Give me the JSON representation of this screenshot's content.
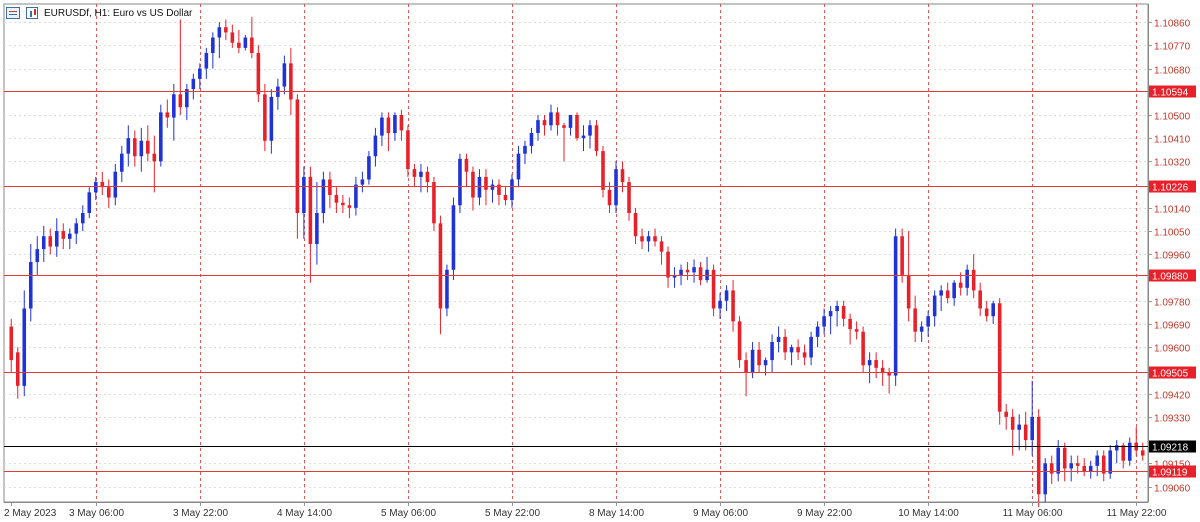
{
  "header": {
    "symbol_title": "EURUSDf, H1:  Euro vs US Dollar",
    "icons": [
      "chart-window-icon",
      "one-click-trading-icon"
    ]
  },
  "colors": {
    "bull": "#1f33d6",
    "bear": "#e8202a",
    "level_line": "#e23b3b",
    "label_bg": "#e8202a",
    "current_line": "#000000",
    "grid": "#dcdcdc",
    "axis_text": "#c0392b",
    "time_text": "#333333",
    "neutral": "#19a919"
  },
  "chart_data": {
    "type": "candlestick",
    "title": "EURUSDf, H1:  Euro vs US Dollar",
    "y_ticks": [
      "1.10860",
      "1.10770",
      "1.10680",
      "1.10500",
      "1.10410",
      "1.10320",
      "1.10140",
      "1.10050",
      "1.09960",
      "1.09780",
      "1.09690",
      "1.09600",
      "1.09420",
      "1.09330",
      "1.09150",
      "1.09060"
    ],
    "y_range": [
      1.09,
      1.1093
    ],
    "x_ticks": [
      "2 May 2023",
      "3 May 06:00",
      "3 May 22:00",
      "4 May 14:00",
      "5 May 06:00",
      "5 May 22:00",
      "8 May 14:00",
      "9 May 06:00",
      "9 May 22:00",
      "10 May 14:00",
      "11 May 06:00",
      "11 May 22:00"
    ],
    "levels": [
      {
        "price": 1.10594,
        "label": "1.10594"
      },
      {
        "price": 1.10226,
        "label": "1.10226"
      },
      {
        "price": 1.0988,
        "label": "1.09880"
      },
      {
        "price": 1.09505,
        "label": "1.09505"
      },
      {
        "price": 1.09119,
        "label": "1.09119"
      }
    ],
    "current_price": {
      "price": 1.09218,
      "label": "1.09218"
    },
    "grid": true,
    "candles": [
      [
        1.0968,
        1.0971,
        1.095,
        1.0955
      ],
      [
        1.0958,
        1.096,
        1.094,
        1.0945
      ],
      [
        1.0945,
        1.0982,
        1.0941,
        1.0975
      ],
      [
        1.0975,
        1.1,
        1.097,
        1.0993
      ],
      [
        1.0993,
        1.1003,
        1.0988,
        1.0998
      ],
      [
        1.0998,
        1.1007,
        1.0993,
        1.1003
      ],
      [
        1.1003,
        1.1006,
        1.0996,
        1.0999
      ],
      [
        1.0999,
        1.101,
        1.0995,
        1.1005
      ],
      [
        1.1005,
        1.1008,
        1.0998,
        1.1002
      ],
      [
        1.1002,
        1.1006,
        1.0998,
        1.1004
      ],
      [
        1.1004,
        1.101,
        1.1,
        1.1008
      ],
      [
        1.1008,
        1.1015,
        1.1005,
        1.1012
      ],
      [
        1.1012,
        1.1022,
        1.101,
        1.102
      ],
      [
        1.102,
        1.1026,
        1.1017,
        1.1024
      ],
      [
        1.1024,
        1.1028,
        1.1019,
        1.1022
      ],
      [
        1.1022,
        1.1025,
        1.1014,
        1.1018
      ],
      [
        1.1018,
        1.1031,
        1.1015,
        1.1028
      ],
      [
        1.1028,
        1.1038,
        1.1024,
        1.1035
      ],
      [
        1.1035,
        1.1046,
        1.103,
        1.1041
      ],
      [
        1.1041,
        1.1044,
        1.103,
        1.1034
      ],
      [
        1.1034,
        1.1045,
        1.1028,
        1.104
      ],
      [
        1.104,
        1.1046,
        1.1032,
        1.1035
      ],
      [
        1.1035,
        1.1042,
        1.102,
        1.1032
      ],
      [
        1.1032,
        1.1054,
        1.103,
        1.1051
      ],
      [
        1.1051,
        1.1056,
        1.1045,
        1.1049
      ],
      [
        1.1049,
        1.1062,
        1.104,
        1.1058
      ],
      [
        1.1058,
        1.1087,
        1.105,
        1.1053
      ],
      [
        1.1053,
        1.1062,
        1.1048,
        1.106
      ],
      [
        1.106,
        1.1066,
        1.1056,
        1.1064
      ],
      [
        1.1064,
        1.107,
        1.106,
        1.1068
      ],
      [
        1.1068,
        1.1076,
        1.1064,
        1.1074
      ],
      [
        1.1074,
        1.1082,
        1.1068,
        1.108
      ],
      [
        1.108,
        1.1086,
        1.1072,
        1.1084
      ],
      [
        1.1084,
        1.1087,
        1.1079,
        1.1082
      ],
      [
        1.1082,
        1.1085,
        1.1076,
        1.1078
      ],
      [
        1.1078,
        1.1083,
        1.1074,
        1.1076
      ],
      [
        1.1076,
        1.1081,
        1.1075,
        1.108
      ],
      [
        1.108,
        1.1088,
        1.1072,
        1.1074
      ],
      [
        1.1074,
        1.1077,
        1.1055,
        1.1058
      ],
      [
        1.1058,
        1.1062,
        1.1036,
        1.104
      ],
      [
        1.104,
        1.106,
        1.1035,
        1.1057
      ],
      [
        1.1057,
        1.1064,
        1.1052,
        1.1061
      ],
      [
        1.1061,
        1.1073,
        1.1058,
        1.107
      ],
      [
        1.107,
        1.1076,
        1.105,
        1.1056
      ],
      [
        1.1056,
        1.1058,
        1.1002,
        1.1012
      ],
      [
        1.1012,
        1.103,
        1.1002,
        1.1026
      ],
      [
        1.1026,
        1.103,
        1.0985,
        1.1
      ],
      [
        1.1,
        1.1024,
        1.0992,
        1.1012
      ],
      [
        1.1012,
        1.1028,
        1.1008,
        1.1025
      ],
      [
        1.1025,
        1.1028,
        1.1014,
        1.1019
      ],
      [
        1.1019,
        1.1022,
        1.1012,
        1.1016
      ],
      [
        1.1016,
        1.1019,
        1.1012,
        1.1015
      ],
      [
        1.1015,
        1.1018,
        1.101,
        1.1014
      ],
      [
        1.1014,
        1.1026,
        1.1011,
        1.1023
      ],
      [
        1.1023,
        1.1028,
        1.102,
        1.1025
      ],
      [
        1.1025,
        1.1036,
        1.1023,
        1.1034
      ],
      [
        1.1034,
        1.1045,
        1.103,
        1.1042
      ],
      [
        1.1042,
        1.1051,
        1.1038,
        1.1049
      ],
      [
        1.1049,
        1.1051,
        1.1036,
        1.1043
      ],
      [
        1.1043,
        1.1051,
        1.104,
        1.105
      ],
      [
        1.105,
        1.1052,
        1.104,
        1.1044
      ],
      [
        1.1044,
        1.1046,
        1.1026,
        1.1029
      ],
      [
        1.1029,
        1.1031,
        1.1022,
        1.1026
      ],
      [
        1.1026,
        1.1031,
        1.102,
        1.1028
      ],
      [
        1.1028,
        1.103,
        1.102,
        1.1024
      ],
      [
        1.1024,
        1.1026,
        1.1005,
        1.1008
      ],
      [
        1.1008,
        1.1011,
        1.0965,
        1.0975
      ],
      [
        1.0975,
        1.0992,
        1.0972,
        1.099
      ],
      [
        1.099,
        1.1018,
        1.0986,
        1.1015
      ],
      [
        1.1015,
        1.1035,
        1.1012,
        1.1033
      ],
      [
        1.1033,
        1.1035,
        1.1022,
        1.1028
      ],
      [
        1.1028,
        1.103,
        1.1013,
        1.1018
      ],
      [
        1.1018,
        1.1029,
        1.1015,
        1.1026
      ],
      [
        1.1026,
        1.1029,
        1.1015,
        1.1021
      ],
      [
        1.1021,
        1.1025,
        1.1016,
        1.1023
      ],
      [
        1.1023,
        1.1025,
        1.1015,
        1.1019
      ],
      [
        1.1019,
        1.1022,
        1.1015,
        1.1017
      ],
      [
        1.1017,
        1.1027,
        1.1014,
        1.1025
      ],
      [
        1.1025,
        1.1038,
        1.1022,
        1.1035
      ],
      [
        1.1035,
        1.104,
        1.1031,
        1.1038
      ],
      [
        1.1038,
        1.1045,
        1.1035,
        1.1043
      ],
      [
        1.1043,
        1.105,
        1.104,
        1.1048
      ],
      [
        1.1048,
        1.105,
        1.1042,
        1.1046
      ],
      [
        1.1046,
        1.1054,
        1.1044,
        1.1051
      ],
      [
        1.1051,
        1.1053,
        1.1042,
        1.1046
      ],
      [
        1.1046,
        1.1047,
        1.1032,
        1.1045
      ],
      [
        1.1045,
        1.105,
        1.1042,
        1.105
      ],
      [
        1.105,
        1.1051,
        1.104,
        1.1041
      ],
      [
        1.1041,
        1.1046,
        1.1036,
        1.1042
      ],
      [
        1.1042,
        1.1048,
        1.1037,
        1.1046
      ],
      [
        1.1046,
        1.1048,
        1.1034,
        1.1036
      ],
      [
        1.1036,
        1.1038,
        1.1018,
        1.1021
      ],
      [
        1.1021,
        1.1024,
        1.1012,
        1.1015
      ],
      [
        1.1015,
        1.1032,
        1.1012,
        1.1029
      ],
      [
        1.1029,
        1.1032,
        1.102,
        1.1024
      ],
      [
        1.1024,
        1.1026,
        1.1009,
        1.1012
      ],
      [
        1.1012,
        1.1014,
        1.1,
        1.1003
      ],
      [
        1.1003,
        1.1006,
        1.0998,
        1.1001
      ],
      [
        1.1001,
        1.1005,
        1.0997,
        1.1003
      ],
      [
        1.1003,
        1.1006,
        1.0999,
        1.1001
      ],
      [
        1.1001,
        1.1003,
        1.0992,
        1.0997
      ],
      [
        1.0997,
        1.0999,
        1.0983,
        1.0987
      ],
      [
        1.0987,
        1.0991,
        1.0983,
        1.0988
      ],
      [
        1.0988,
        1.0992,
        1.0984,
        1.099
      ],
      [
        1.099,
        1.0993,
        1.0986,
        1.0989
      ],
      [
        1.0989,
        1.0994,
        1.0985,
        1.0991
      ],
      [
        1.0991,
        1.0993,
        1.0984,
        1.0986
      ],
      [
        1.0986,
        1.0995,
        1.0985,
        1.099
      ],
      [
        1.099,
        1.0992,
        1.0972,
        1.0975
      ],
      [
        1.0975,
        1.0981,
        1.0971,
        1.0978
      ],
      [
        1.0978,
        1.0984,
        1.0974,
        1.0982
      ],
      [
        1.0982,
        1.0986,
        1.0966,
        1.097
      ],
      [
        1.097,
        1.0972,
        1.0952,
        1.0955
      ],
      [
        1.0955,
        1.0958,
        1.0941,
        1.095
      ],
      [
        1.095,
        1.0962,
        1.0948,
        1.0959
      ],
      [
        1.0959,
        1.0962,
        1.095,
        1.0953
      ],
      [
        1.0953,
        1.0956,
        1.0949,
        1.0955
      ],
      [
        1.0955,
        1.0965,
        1.095,
        1.0962
      ],
      [
        1.0962,
        1.0968,
        1.0958,
        1.0964
      ],
      [
        1.0964,
        1.0967,
        1.0955,
        1.0958
      ],
      [
        1.0958,
        1.0961,
        1.0953,
        1.096
      ],
      [
        1.096,
        1.0963,
        1.0955,
        1.0958
      ],
      [
        1.0958,
        1.0961,
        1.0953,
        1.0956
      ],
      [
        1.0956,
        1.0966,
        1.0953,
        1.0964
      ],
      [
        1.0964,
        1.097,
        1.096,
        1.0968
      ],
      [
        1.0968,
        1.0975,
        1.0965,
        1.0972
      ],
      [
        1.0972,
        1.0976,
        1.0965,
        1.0974
      ],
      [
        1.0974,
        1.0978,
        1.0968,
        1.0976
      ],
      [
        1.0976,
        1.0978,
        1.0968,
        1.0971
      ],
      [
        1.0971,
        1.0973,
        1.0961,
        1.0967
      ],
      [
        1.0967,
        1.097,
        1.0963,
        1.0966
      ],
      [
        1.0966,
        1.0968,
        1.095,
        1.0953
      ],
      [
        1.0953,
        1.0958,
        1.0946,
        1.0955
      ],
      [
        1.0955,
        1.0958,
        1.0948,
        1.0952
      ],
      [
        1.0952,
        1.0955,
        1.0945,
        1.095
      ],
      [
        1.095,
        1.0952,
        1.0942,
        1.0949
      ],
      [
        1.0949,
        1.1006,
        1.0945,
        1.1003
      ],
      [
        1.1003,
        1.1006,
        1.0985,
        1.0988
      ],
      [
        1.0988,
        1.1005,
        1.097,
        1.0975
      ],
      [
        1.0975,
        1.098,
        1.0962,
        1.0966
      ],
      [
        1.0966,
        1.097,
        1.0962,
        1.0968
      ],
      [
        1.0968,
        1.0974,
        1.0964,
        1.0972
      ],
      [
        1.0972,
        1.0982,
        1.0968,
        1.098
      ],
      [
        1.098,
        1.0984,
        1.0974,
        1.0982
      ],
      [
        1.0982,
        1.0985,
        1.0977,
        1.0979
      ],
      [
        1.0979,
        1.0986,
        1.0976,
        1.0985
      ],
      [
        1.0985,
        1.0989,
        1.098,
        1.0983
      ],
      [
        1.0983,
        1.0992,
        1.098,
        1.099
      ],
      [
        1.099,
        1.0996,
        1.0979,
        1.0982
      ],
      [
        1.0982,
        1.0985,
        1.0972,
        1.0975
      ],
      [
        1.0975,
        1.0978,
        1.097,
        1.0972
      ],
      [
        1.0972,
        1.0978,
        1.0969,
        1.0977
      ],
      [
        1.0977,
        1.0979,
        1.093,
        1.0935
      ],
      [
        1.0935,
        1.0938,
        1.0928,
        1.0933
      ],
      [
        1.0933,
        1.0936,
        1.0918,
        1.0928
      ],
      [
        1.0928,
        1.0934,
        1.092,
        1.093
      ],
      [
        1.093,
        1.0935,
        1.092,
        1.0924
      ],
      [
        1.0924,
        1.0947,
        1.0918,
        1.0933
      ],
      [
        1.0933,
        1.0936,
        1.0898,
        1.0903
      ],
      [
        1.0903,
        1.0917,
        1.09,
        1.0915
      ],
      [
        1.0915,
        1.0918,
        1.0907,
        1.0911
      ],
      [
        1.0911,
        1.0924,
        1.0908,
        1.0921
      ],
      [
        1.0921,
        1.0923,
        1.0908,
        1.0913
      ],
      [
        1.0913,
        1.0918,
        1.0908,
        1.0915
      ],
      [
        1.0915,
        1.0918,
        1.0911,
        1.0914
      ],
      [
        1.0914,
        1.0917,
        1.091,
        1.0912
      ],
      [
        1.0912,
        1.0916,
        1.0909,
        1.0914
      ],
      [
        1.0914,
        1.092,
        1.091,
        1.0918
      ],
      [
        1.0918,
        1.092,
        1.0908,
        1.0911
      ],
      [
        1.0911,
        1.0922,
        1.0909,
        1.092
      ],
      [
        1.092,
        1.0924,
        1.0915,
        1.0922
      ],
      [
        1.0922,
        1.0923,
        1.0913,
        1.0916
      ],
      [
        1.0916,
        1.0925,
        1.0914,
        1.0923
      ],
      [
        1.0923,
        1.0929,
        1.0918,
        1.092
      ],
      [
        1.092,
        1.0923,
        1.0916,
        1.0918
      ]
    ]
  }
}
